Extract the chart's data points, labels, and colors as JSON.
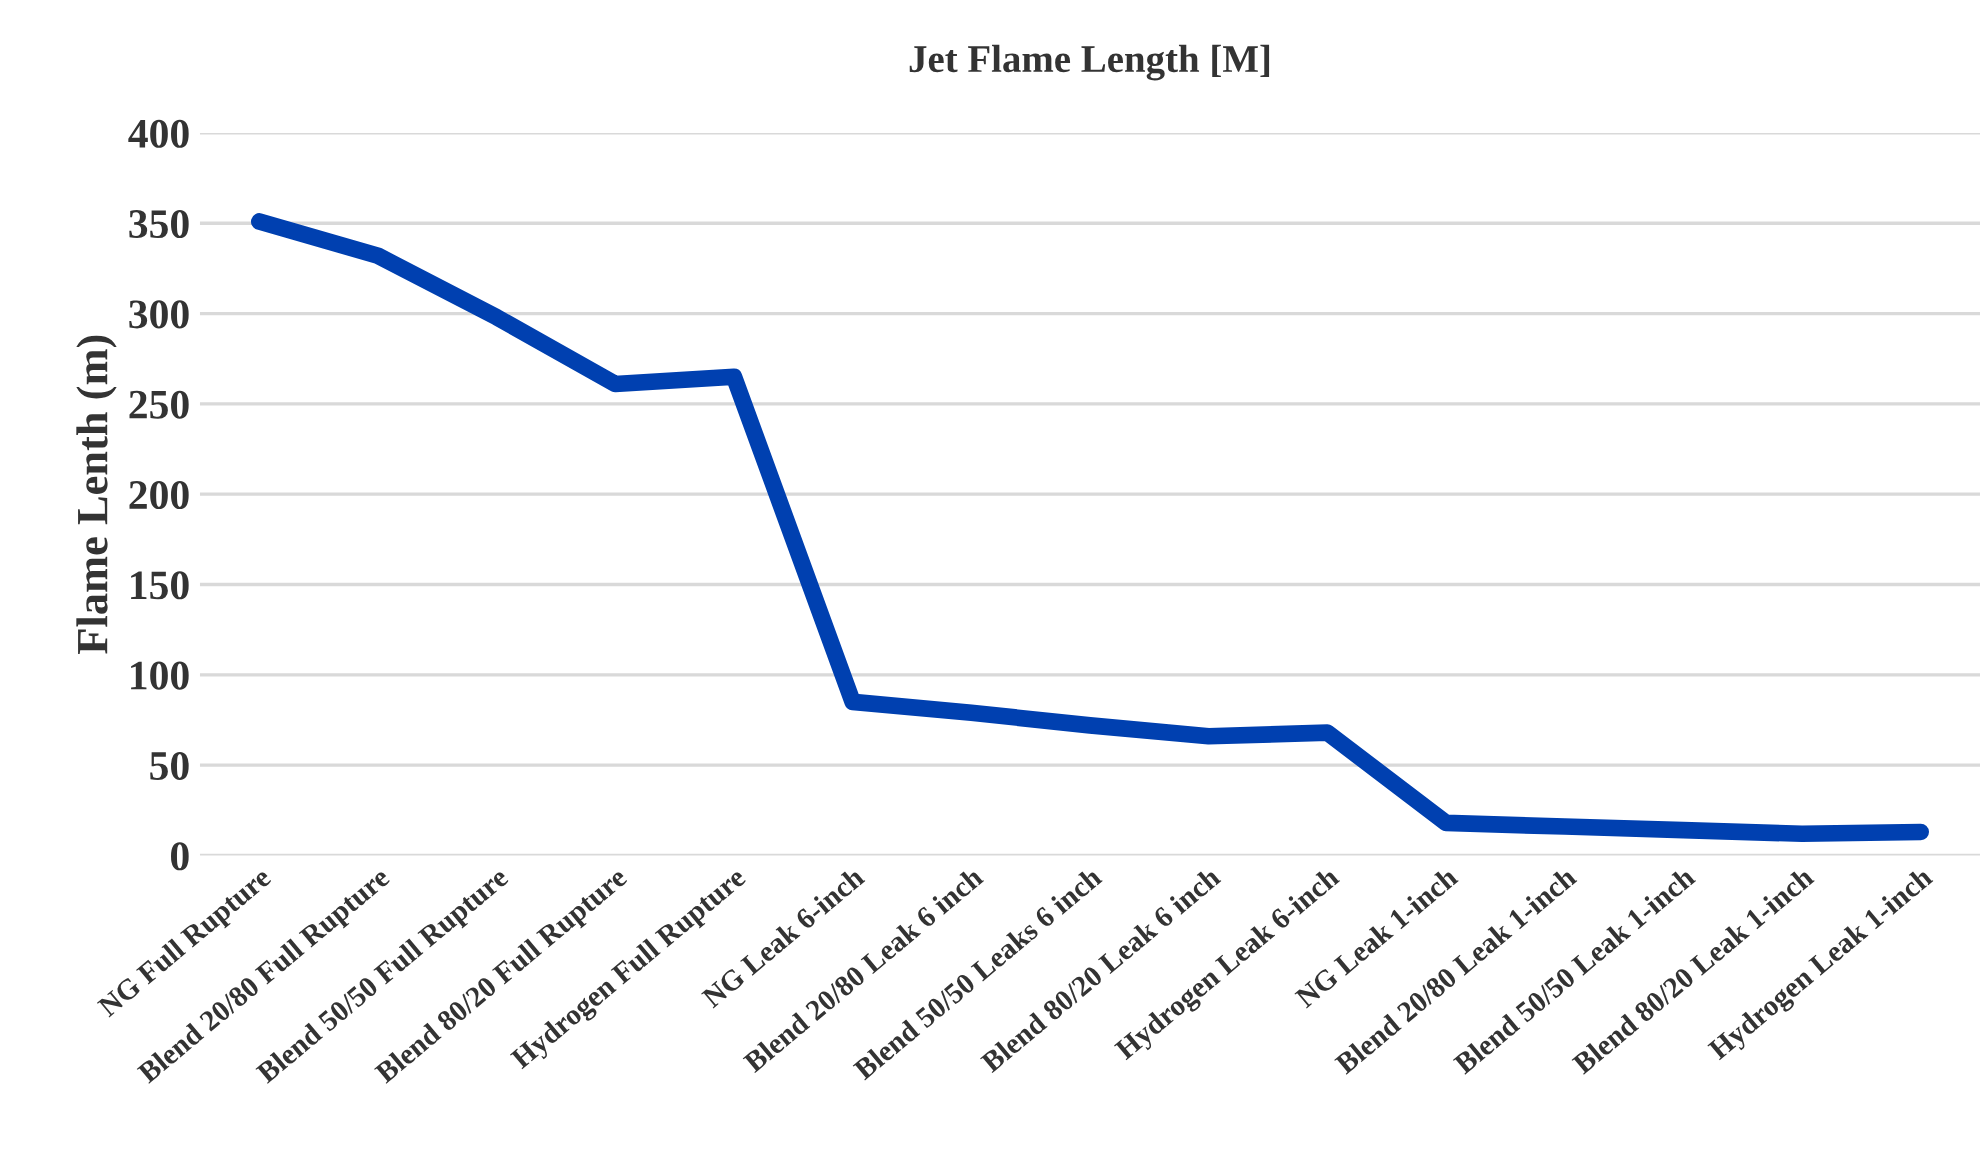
{
  "chart_data": {
    "type": "line",
    "title": "Jet Flame Length [M]",
    "ylabel": "Flame Lenth (m)",
    "categories": [
      "NG Full Rupture",
      "Blend 20/80 Full Rupture",
      "Blend 50/50 Full Rupture",
      "Blend 80/20 Full Rupture",
      "Hydrogen Full Rupture",
      "NG Leak 6-inch",
      "Blend 20/80 Leak 6 inch",
      "Blend 50/50 Leaks 6 inch",
      "Blend 80/20 Leak 6 inch",
      "Hydrogen Leak 6-inch",
      "NG Leak 1-inch",
      "Blend 20/80 Leak 1-inch",
      "Blend 50/50 Leak 1-inch",
      "Blend 80/20 Leak 1-inch",
      "Hydrogen Leak 1-inch"
    ],
    "series": [
      {
        "color": "#0040b0",
        "values": [
          351,
          332,
          298,
          261,
          265,
          85,
          79,
          72,
          66,
          68,
          18,
          16,
          14,
          12,
          13
        ]
      }
    ],
    "ylim": [
      0,
      400
    ],
    "yticks": [
      0,
      50,
      100,
      150,
      200,
      250,
      300,
      350,
      400
    ],
    "grid": "y",
    "legend": false,
    "marker": "none",
    "line_style": "solid"
  }
}
